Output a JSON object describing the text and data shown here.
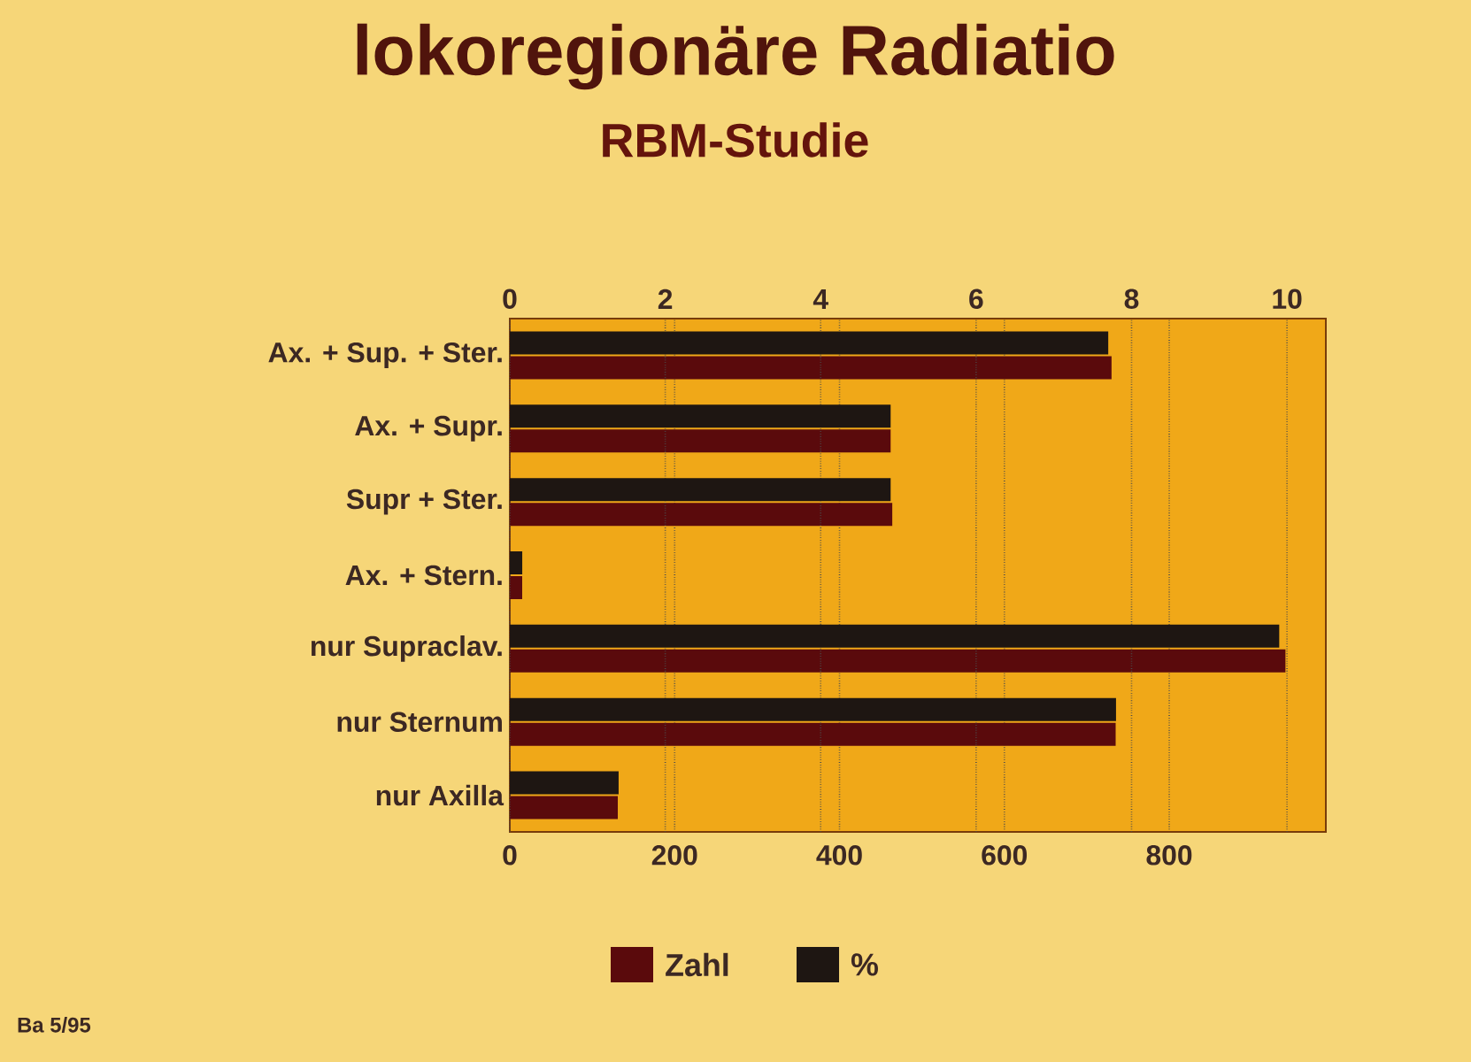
{
  "chart_data": {
    "type": "bar",
    "orientation": "horizontal",
    "title": "lokoregionäre Radiatio",
    "subtitle": "RBM-Studie",
    "categories": [
      "Ax. + Sup. + Ster.",
      "Ax. + Supr.",
      "Supr + Ster.",
      "Ax. + Stern.",
      "nur Supraclav.",
      "nur Sternum",
      "nur Axilla"
    ],
    "series": [
      {
        "name": "Zahl",
        "color": "#5a0a0c",
        "values": [
          730,
          462,
          464,
          15,
          941,
          735,
          131
        ]
      },
      {
        "name": "%",
        "color": "#1e1612",
        "axis": "x2",
        "values": [
          7.7,
          4.9,
          4.9,
          0.16,
          9.9,
          7.8,
          1.4
        ]
      }
    ],
    "xlim": [
      0,
      990
    ],
    "xticks": [
      0,
      200,
      400,
      600,
      800
    ],
    "x2lim": [
      0,
      10.5
    ],
    "x2ticks": [
      0,
      2,
      4,
      6,
      8,
      10
    ],
    "grid": "x",
    "legend": "bottom",
    "annotations": [
      "Ba 5/95"
    ]
  }
}
